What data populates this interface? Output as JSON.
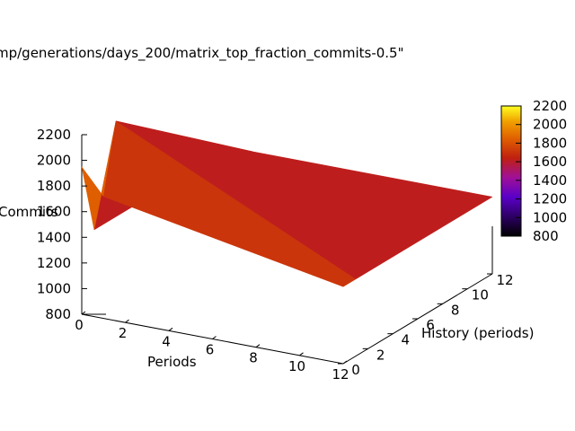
{
  "chart_data": {
    "type": "surface",
    "title": "mp/generations/days_200/matrix_top_fraction_commits-0.5\"",
    "zlabel": "Commits",
    "xlabel": "Periods",
    "ylabel": "History (periods)",
    "zlim": [
      800,
      2200
    ],
    "xlim": [
      0,
      12
    ],
    "ylim": [
      0,
      12
    ],
    "z_ticks": [
      "800",
      "1000",
      "1200",
      "1400",
      "1600",
      "1800",
      "2000",
      "2200"
    ],
    "x_ticks": [
      "0",
      "2",
      "4",
      "6",
      "8",
      "10",
      "12"
    ],
    "y_ticks": [
      "0",
      "2",
      "4",
      "6",
      "8",
      "10",
      "12"
    ],
    "colorbar": {
      "ticks": [
        "800",
        "1000",
        "1200",
        "1400",
        "1600",
        "1800",
        "2000",
        "2200"
      ],
      "range": [
        800,
        2200
      ],
      "palette": [
        "#000000",
        "#5a00c8",
        "#a01098",
        "#c02010",
        "#e06000",
        "#f0a000",
        "#ffff20"
      ]
    },
    "grid": false,
    "x": [
      0,
      1,
      12
    ],
    "y": [
      0,
      1,
      12
    ],
    "z": [
      [
        1950,
        1400,
        1400
      ],
      [
        1750,
        2280,
        1400
      ],
      [
        1400,
        1400,
        1400
      ]
    ]
  }
}
